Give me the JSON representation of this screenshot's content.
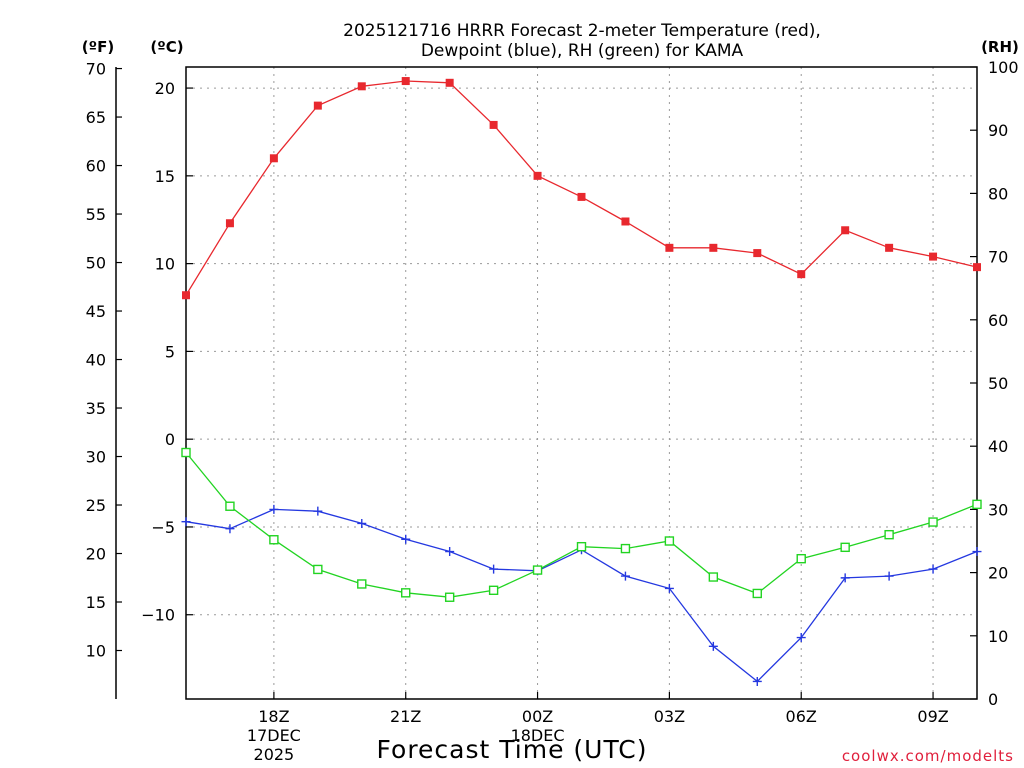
{
  "chart_data": {
    "type": "line",
    "title_line1": "2025121716 HRRR Forecast 2-meter Temperature (red),",
    "title_line2": "Dewpoint (blue), RH (green) for KAMA",
    "xlabel": "Forecast Time (UTC)",
    "credit": "coolwx.com/modelts",
    "units": {
      "fahrenheit": "(ºF)",
      "celsius": "(ºC)",
      "rh": "(RH)"
    },
    "x_hours": [
      16,
      17,
      18,
      19,
      20,
      21,
      22,
      23,
      24,
      25,
      26,
      27,
      28,
      29,
      30,
      31,
      32,
      33,
      34
    ],
    "x_range": [
      16,
      34
    ],
    "x_ticks": [
      {
        "hour": 18,
        "label": "18Z",
        "date": "17DEC",
        "year": "2025"
      },
      {
        "hour": 21,
        "label": "21Z"
      },
      {
        "hour": 24,
        "label": "00Z",
        "date": "18DEC"
      },
      {
        "hour": 27,
        "label": "03Z"
      },
      {
        "hour": 30,
        "label": "06Z"
      },
      {
        "hour": 33,
        "label": "09Z"
      }
    ],
    "temp_c_axis": {
      "range": [
        -14.8,
        21.2
      ],
      "ticks": [
        -10,
        -5,
        0,
        5,
        10,
        15,
        20
      ],
      "tick_labels": [
        "−10",
        "−5",
        "0",
        "5",
        "10",
        "15",
        "20"
      ]
    },
    "temp_f_axis": {
      "range": [
        5,
        70.16
      ],
      "ticks": [
        10,
        15,
        20,
        25,
        30,
        35,
        40,
        45,
        50,
        55,
        60,
        65,
        70
      ],
      "tick_labels": [
        "10",
        "15",
        "20",
        "25",
        "30",
        "35",
        "40",
        "45",
        "50",
        "55",
        "60",
        "65",
        "70"
      ]
    },
    "rh_axis": {
      "range": [
        0,
        100
      ],
      "ticks": [
        0,
        10,
        20,
        30,
        40,
        50,
        60,
        70,
        80,
        90,
        100
      ],
      "tick_labels": [
        "0",
        "10",
        "20",
        "30",
        "40",
        "50",
        "60",
        "70",
        "80",
        "90",
        "100"
      ]
    },
    "series": [
      {
        "name": "Temperature",
        "unit": "C",
        "color": "#e8282e",
        "marker": "filled-square",
        "values": [
          8.2,
          12.3,
          16.0,
          19.0,
          20.1,
          20.4,
          20.3,
          17.9,
          15.0,
          13.8,
          12.4,
          10.9,
          10.9,
          10.6,
          9.4,
          11.9,
          10.9,
          10.4,
          9.8
        ]
      },
      {
        "name": "Dewpoint",
        "unit": "C",
        "color": "#2438e0",
        "marker": "plus",
        "values": [
          -4.7,
          -5.1,
          -4.0,
          -4.1,
          -4.8,
          -5.7,
          -6.4,
          -7.4,
          -7.5,
          -6.3,
          -7.8,
          -8.5,
          -11.8,
          -13.8,
          -11.3,
          -7.9,
          -7.8,
          -7.4,
          -6.4
        ]
      },
      {
        "name": "RH",
        "unit": "%",
        "color": "#22d422",
        "marker": "open-square",
        "values": [
          39,
          30.5,
          25.2,
          20.5,
          18.2,
          16.8,
          16.1,
          17.2,
          20.4,
          24.1,
          23.8,
          25,
          19.3,
          16.7,
          22.2,
          24,
          26,
          28,
          30.8
        ]
      }
    ]
  }
}
